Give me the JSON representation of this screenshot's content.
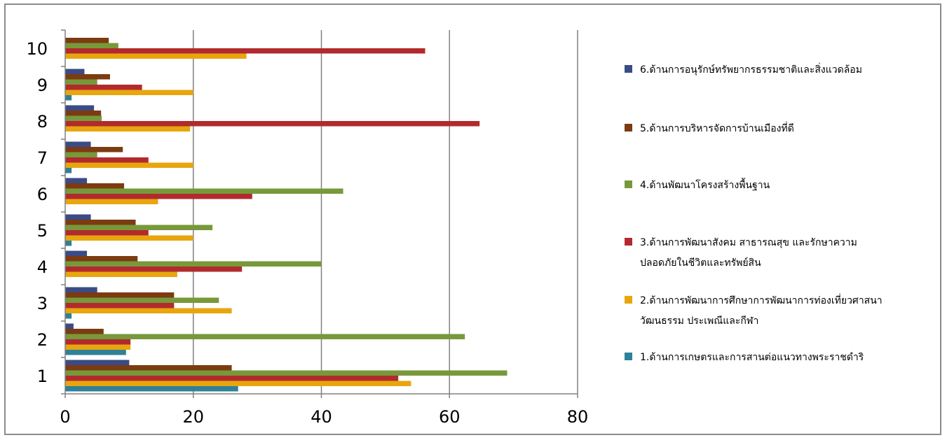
{
  "chart_data": {
    "type": "bar",
    "orientation": "horizontal",
    "categories": [
      "1",
      "2",
      "3",
      "4",
      "5",
      "6",
      "7",
      "8",
      "9",
      "10"
    ],
    "xlim": [
      0,
      80
    ],
    "x_ticks": [
      "0",
      "20",
      "40",
      "60",
      "80"
    ],
    "grid": "vertical",
    "legend_position": "right",
    "series": [
      {
        "name": "1.ด้านการเกษตรและการสานต่อแนวทางพระราชดำริ",
        "color": "#2E8197",
        "values": [
          27,
          9.5,
          1,
          0,
          1,
          0,
          1,
          0,
          1,
          0
        ]
      },
      {
        "name": "2.ด้านการพัฒนาการศึกษาการพัฒนาการท่องเที่ยวศาสนา วัฒนธรรม ประเพณีและกีฬา",
        "color": "#E8A60E",
        "values": [
          54,
          10.2,
          26,
          17.5,
          20,
          14.5,
          20,
          19.5,
          20,
          28.3
        ]
      },
      {
        "name": "3.ด้านการพัฒนาสังคม สาธารณสุข และรักษาความ ปลอดภัยในชีวิตและทรัพย์สิน",
        "color": "#B22A2D",
        "values": [
          52,
          10.2,
          17,
          27.6,
          13,
          29.2,
          13,
          64.7,
          12,
          56.2
        ]
      },
      {
        "name": "4.ด้านพัฒนาโครงสร้างพื้นฐาน",
        "color": "#77993A",
        "values": [
          69,
          62.4,
          24,
          40,
          23,
          43.4,
          5,
          5.7,
          5,
          8.3
        ]
      },
      {
        "name": "5.ด้านการบริหารจัดการบ้านเมืองที่ดี",
        "color": "#7C3B11",
        "values": [
          26,
          6,
          17,
          11.3,
          11,
          9.2,
          9,
          5.6,
          7,
          6.8
        ]
      },
      {
        "name": "6.ด้านการอนุรักษ์ทรัพยากรธรรมชาติและสิ่งแวดล้อม",
        "color": "#3B4B85",
        "values": [
          10,
          1.3,
          5,
          3.4,
          4,
          3.4,
          4,
          4.5,
          3,
          0
        ]
      }
    ],
    "legend_lines": [
      [
        "6.ด้านการอนุรักษ์ทรัพยากรธรรมชาติและสิ่งแวดล้อม"
      ],
      [
        "5.ด้านการบริหารจัดการบ้านเมืองที่ดี"
      ],
      [
        "4.ด้านพัฒนาโครงสร้างพื้นฐาน"
      ],
      [
        "3.ด้านการพัฒนาสังคม สาธารณสุข และรักษาความ",
        "ปลอดภัยในชีวิตและทรัพย์สิน"
      ],
      [
        "2.ด้านการพัฒนาการศึกษาการพัฒนาการท่องเที่ยวศาสนา",
        "วัฒนธรรม ประเพณีและกีฬา"
      ],
      [
        "1.ด้านการเกษตรและการสานต่อแนวทางพระราชดำริ"
      ]
    ],
    "legend_colors": [
      "#3B4B85",
      "#7C3B11",
      "#77993A",
      "#B22A2D",
      "#E8A60E",
      "#2E8197"
    ]
  }
}
